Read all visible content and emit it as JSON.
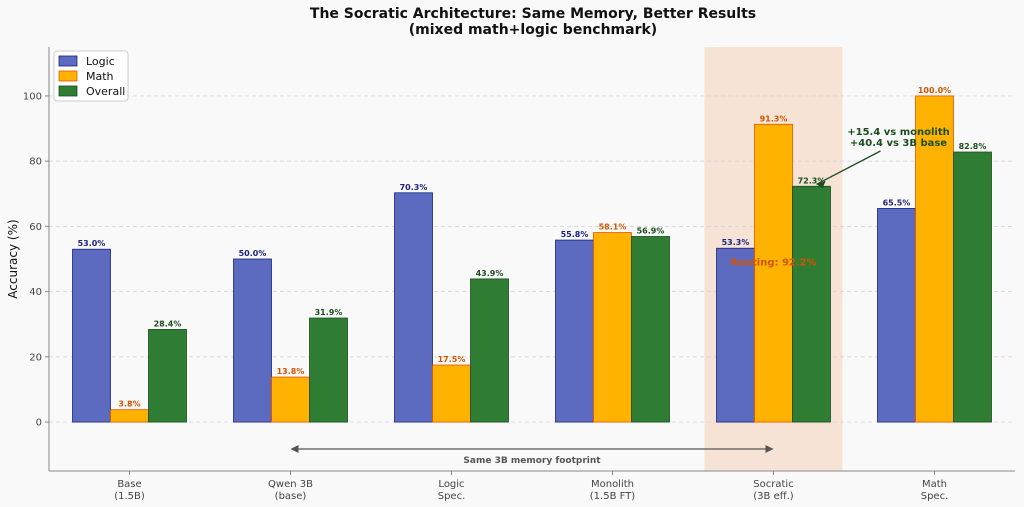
{
  "chart_data": {
    "type": "bar",
    "title": "The Socratic Architecture: Same Memory, Better Results",
    "subtitle": "(mixed math+logic benchmark)",
    "ylabel": "Accuracy (%)",
    "xlabel": "",
    "ylim": [
      -15,
      115
    ],
    "yticks": [
      0,
      20,
      40,
      60,
      80,
      100
    ],
    "grid": "horizontal dashed",
    "legend_position": "top-left",
    "categories": [
      [
        "Base",
        "(1.5B)"
      ],
      [
        "Qwen 3B",
        "(base)"
      ],
      [
        "Logic",
        "Spec."
      ],
      [
        "Monolith",
        "(1.5B FT)"
      ],
      [
        "Socratic",
        "(3B eff.)"
      ],
      [
        "Math",
        "Spec."
      ]
    ],
    "series": [
      {
        "name": "Logic",
        "color": "#5c6bc0",
        "edge": "#1a237e",
        "label_color": "#1a237e",
        "values": [
          53.0,
          50.0,
          70.3,
          55.8,
          53.3,
          65.5
        ]
      },
      {
        "name": "Math",
        "color": "#ffb300",
        "edge": "#e65100",
        "label_color": "#d35400",
        "values": [
          3.8,
          13.8,
          17.5,
          58.1,
          91.3,
          100.0
        ]
      },
      {
        "name": "Overall",
        "color": "#2e7d32",
        "edge": "#1b4d1e",
        "label_color": "#1b4d1e",
        "values": [
          28.4,
          31.9,
          43.9,
          56.9,
          72.3,
          82.8
        ]
      }
    ],
    "highlight": {
      "category_index": 4,
      "color": "#f6e3d6"
    },
    "annotations": {
      "improvement": [
        "+15.4 vs monolith",
        "+40.4 vs 3B base"
      ],
      "routing": "Routing: 92.2%",
      "memory_span": {
        "label": "Same 3B memory footprint",
        "from_index": 1,
        "to_index": 4
      }
    }
  }
}
